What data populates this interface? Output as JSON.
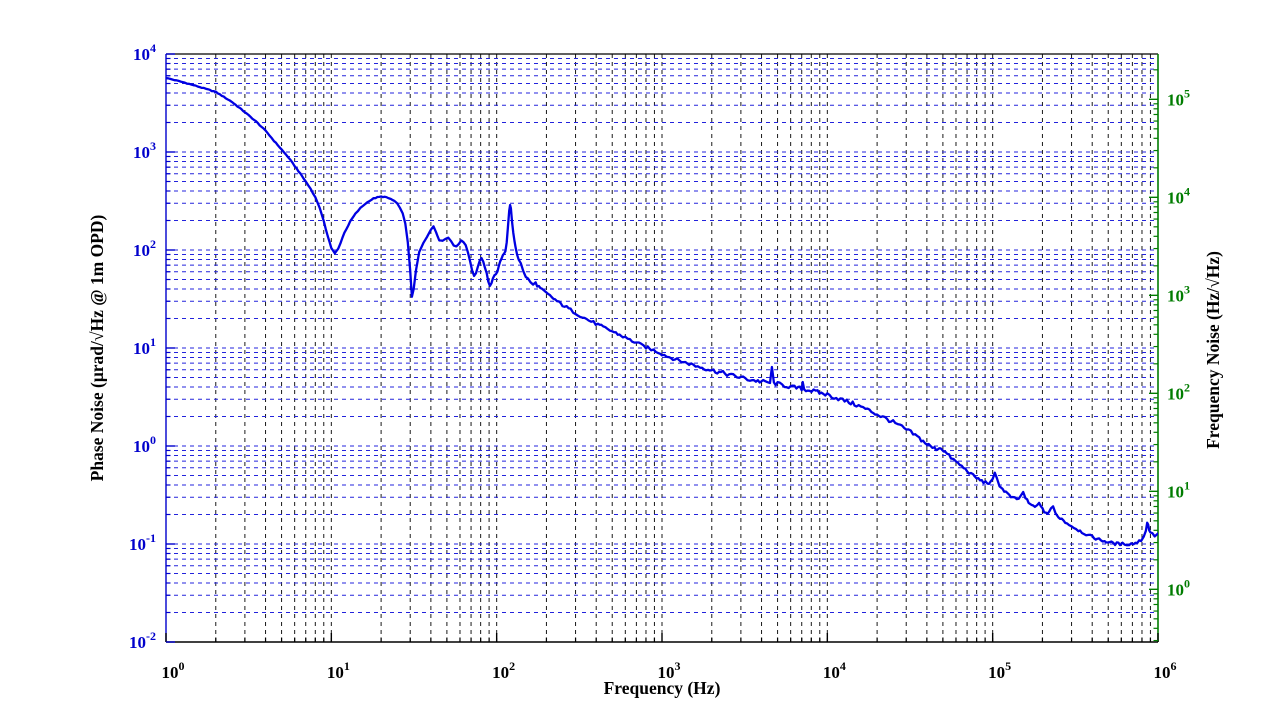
{
  "figure": {
    "background": "#ffffff",
    "text_color": "#000000"
  },
  "chart_data": {
    "type": "line",
    "title": "",
    "xlabel": "Frequency (Hz)",
    "ylabel_left": "Phase Noise (μrad/√Hz @ 1m OPD)",
    "ylabel_right": "Frequency Noise (Hz/√Hz)",
    "grid": {
      "style": "dashed",
      "minor": true,
      "horizontal_color": "#2323DC",
      "vertical_color": "#1a1a1a"
    },
    "x_axis": {
      "scale": "log",
      "min": 1,
      "max": 1000000,
      "tick_base": "10",
      "tick_exponents": [
        0,
        1,
        2,
        3,
        4,
        5,
        6
      ],
      "color": "#000000",
      "label_color": "#000000"
    },
    "y_axis_left": {
      "scale": "log",
      "min": 0.01,
      "max": 10000,
      "tick_base": "10",
      "tick_exponents": [
        4,
        3,
        2,
        1,
        0,
        -1,
        -2
      ],
      "color": "#0000CC",
      "label_color": "#0000CC"
    },
    "y_axis_right": {
      "scale": "log",
      "min": 0.29,
      "max": 288000,
      "tick_base": "10",
      "tick_exponents": [
        5,
        4,
        3,
        2,
        1,
        0
      ],
      "color": "#007C00",
      "label_color": "#007C00",
      "left_value_at_right_1": 0.0345
    },
    "series": [
      {
        "name": "phase-noise-trace",
        "color": "#0000E2",
        "width": 2.3,
        "points": [
          [
            1,
            5700
          ],
          [
            1.3,
            5100
          ],
          [
            1.6,
            4600
          ],
          [
            2,
            4100
          ],
          [
            2.5,
            3250
          ],
          [
            3,
            2550
          ],
          [
            3.5,
            2050
          ],
          [
            4,
            1650
          ],
          [
            4.5,
            1300
          ],
          [
            5,
            1060
          ],
          [
            5.5,
            880
          ],
          [
            6,
            720
          ],
          [
            6.5,
            600
          ],
          [
            7,
            500
          ],
          [
            7.5,
            420
          ],
          [
            8,
            345
          ],
          [
            8.5,
            270
          ],
          [
            9,
            195
          ],
          [
            9.5,
            140
          ],
          [
            10,
            105
          ],
          [
            10.5,
            92
          ],
          [
            11,
            103
          ],
          [
            12,
            150
          ],
          [
            13,
            195
          ],
          [
            14,
            235
          ],
          [
            15,
            268
          ],
          [
            16,
            295
          ],
          [
            17,
            318
          ],
          [
            18,
            335
          ],
          [
            19,
            345
          ],
          [
            20,
            350
          ],
          [
            21,
            348
          ],
          [
            22,
            340
          ],
          [
            23,
            330
          ],
          [
            24,
            315
          ],
          [
            25,
            298
          ],
          [
            26,
            272
          ],
          [
            27,
            235
          ],
          [
            28,
            185
          ],
          [
            29,
            120
          ],
          [
            30,
            62
          ],
          [
            30.7,
            33
          ],
          [
            31.5,
            40
          ],
          [
            32.5,
            62
          ],
          [
            34,
            95
          ],
          [
            36,
            118
          ],
          [
            38,
            138
          ],
          [
            40,
            160
          ],
          [
            41.5,
            175
          ],
          [
            43,
            152
          ],
          [
            45,
            126
          ],
          [
            47,
            124
          ],
          [
            49,
            130
          ],
          [
            51,
            134
          ],
          [
            53,
            124
          ],
          [
            55,
            112
          ],
          [
            57,
            108
          ],
          [
            59,
            116
          ],
          [
            61,
            126
          ],
          [
            63,
            120
          ],
          [
            65,
            112
          ],
          [
            67,
            95
          ],
          [
            69,
            78
          ],
          [
            71,
            62
          ],
          [
            73,
            54
          ],
          [
            75,
            58
          ],
          [
            77,
            68
          ],
          [
            79,
            78
          ],
          [
            81,
            82
          ],
          [
            83,
            76
          ],
          [
            85,
            66
          ],
          [
            87,
            58
          ],
          [
            89,
            48
          ],
          [
            91,
            43
          ],
          [
            93,
            46
          ],
          [
            95,
            52
          ],
          [
            97,
            55
          ],
          [
            99,
            57
          ],
          [
            101,
            60
          ],
          [
            103,
            68
          ],
          [
            105,
            76
          ],
          [
            107,
            82
          ],
          [
            109,
            88
          ],
          [
            111,
            92
          ],
          [
            113,
            98
          ],
          [
            115,
            120
          ],
          [
            117,
            170
          ],
          [
            119,
            250
          ],
          [
            120.5,
            290
          ],
          [
            122,
            265
          ],
          [
            124,
            190
          ],
          [
            126,
            150
          ],
          [
            128,
            125
          ],
          [
            130,
            108
          ],
          [
            133,
            90
          ],
          [
            136,
            80
          ],
          [
            140,
            72
          ],
          [
            145,
            60
          ],
          [
            150,
            54
          ],
          [
            155,
            50
          ],
          [
            160,
            47
          ],
          [
            166,
            44
          ],
          [
            172,
            46
          ],
          [
            180,
            42
          ],
          [
            188,
            39
          ],
          [
            196,
            37
          ],
          [
            205,
            35
          ],
          [
            215,
            33
          ],
          [
            226,
            31
          ],
          [
            238,
            29
          ],
          [
            250,
            27.5
          ],
          [
            265,
            26
          ],
          [
            280,
            24.5
          ],
          [
            300,
            22.8
          ],
          [
            320,
            21.4
          ],
          [
            340,
            20.2
          ],
          [
            360,
            19.2
          ],
          [
            385,
            18.2
          ],
          [
            410,
            17.3
          ],
          [
            440,
            16.3
          ],
          [
            470,
            15.5
          ],
          [
            500,
            14.8
          ],
          [
            540,
            13.9
          ],
          [
            580,
            13.1
          ],
          [
            620,
            12.4
          ],
          [
            660,
            11.8
          ],
          [
            700,
            11.3
          ],
          [
            750,
            10.7
          ],
          [
            800,
            10.2
          ],
          [
            860,
            9.7
          ],
          [
            920,
            9.3
          ],
          [
            1000,
            8.7
          ],
          [
            1100,
            8.1
          ],
          [
            1200,
            7.7
          ],
          [
            1350,
            7.2
          ],
          [
            1500,
            6.8
          ],
          [
            1700,
            6.4
          ],
          [
            1900,
            6.1
          ],
          [
            2100,
            5.8
          ],
          [
            2400,
            5.5
          ],
          [
            2700,
            5.2
          ],
          [
            3000,
            5.0
          ],
          [
            3400,
            4.75
          ],
          [
            3800,
            4.6
          ],
          [
            4200,
            4.5
          ],
          [
            4500,
            4.42
          ],
          [
            4620,
            6.2
          ],
          [
            4750,
            4.38
          ],
          [
            5000,
            4.3
          ],
          [
            5500,
            4.15
          ],
          [
            6000,
            4.0
          ],
          [
            6500,
            3.92
          ],
          [
            7000,
            3.85
          ],
          [
            7100,
            4.5
          ],
          [
            7250,
            3.8
          ],
          [
            7800,
            3.7
          ],
          [
            8500,
            3.58
          ],
          [
            9200,
            3.45
          ],
          [
            10000,
            3.35
          ],
          [
            11000,
            3.15
          ],
          [
            12000,
            3.0
          ],
          [
            13500,
            2.8
          ],
          [
            15000,
            2.62
          ],
          [
            17000,
            2.4
          ],
          [
            19000,
            2.2
          ],
          [
            21000,
            2.02
          ],
          [
            23000,
            1.88
          ],
          [
            25000,
            1.75
          ],
          [
            27500,
            1.6
          ],
          [
            30000,
            1.47
          ],
          [
            33000,
            1.33
          ],
          [
            36000,
            1.2
          ],
          [
            39000,
            1.08
          ],
          [
            42000,
            0.99
          ],
          [
            44500,
            0.94
          ],
          [
            46500,
            0.94
          ],
          [
            48500,
            0.97
          ],
          [
            50500,
            0.9
          ],
          [
            53000,
            0.83
          ],
          [
            56000,
            0.76
          ],
          [
            60000,
            0.69
          ],
          [
            65000,
            0.62
          ],
          [
            70000,
            0.56
          ],
          [
            76000,
            0.5
          ],
          [
            82000,
            0.46
          ],
          [
            88000,
            0.43
          ],
          [
            93000,
            0.42
          ],
          [
            97000,
            0.42
          ],
          [
            100000,
            0.45
          ],
          [
            103000,
            0.52
          ],
          [
            106000,
            0.47
          ],
          [
            110000,
            0.4
          ],
          [
            115000,
            0.36
          ],
          [
            120000,
            0.34
          ],
          [
            126000,
            0.31
          ],
          [
            132000,
            0.295
          ],
          [
            140000,
            0.285
          ],
          [
            147000,
            0.3
          ],
          [
            153000,
            0.34
          ],
          [
            158000,
            0.295
          ],
          [
            165000,
            0.26
          ],
          [
            172000,
            0.25
          ],
          [
            180000,
            0.235
          ],
          [
            186000,
            0.25
          ],
          [
            191000,
            0.27
          ],
          [
            196000,
            0.235
          ],
          [
            205000,
            0.215
          ],
          [
            215000,
            0.205
          ],
          [
            225000,
            0.225
          ],
          [
            232000,
            0.24
          ],
          [
            240000,
            0.205
          ],
          [
            250000,
            0.19
          ],
          [
            262000,
            0.18
          ],
          [
            275000,
            0.168
          ],
          [
            290000,
            0.158
          ],
          [
            310000,
            0.148
          ],
          [
            330000,
            0.139
          ],
          [
            355000,
            0.13
          ],
          [
            380000,
            0.122
          ],
          [
            410000,
            0.116
          ],
          [
            440000,
            0.111
          ],
          [
            475000,
            0.107
          ],
          [
            510000,
            0.104
          ],
          [
            550000,
            0.101
          ],
          [
            590000,
            0.1
          ],
          [
            630000,
            0.1
          ],
          [
            670000,
            0.1
          ],
          [
            710000,
            0.101
          ],
          [
            750000,
            0.104
          ],
          [
            790000,
            0.11
          ],
          [
            820000,
            0.12
          ],
          [
            845000,
            0.14
          ],
          [
            860000,
            0.165
          ],
          [
            872000,
            0.155
          ],
          [
            885000,
            0.142
          ],
          [
            900000,
            0.133
          ],
          [
            925000,
            0.126
          ],
          [
            955000,
            0.122
          ],
          [
            1000000,
            0.128
          ]
        ]
      }
    ],
    "noise_texture": [
      {
        "f_min": 1,
        "f_max": 140,
        "amp": 0.004
      },
      {
        "f_min": 140,
        "f_max": 1500,
        "amp": 0.016
      },
      {
        "f_min": 1500,
        "f_max": 50000,
        "amp": 0.021
      },
      {
        "f_min": 50000,
        "f_max": 1000000,
        "amp": 0.015
      }
    ],
    "legend": null
  }
}
